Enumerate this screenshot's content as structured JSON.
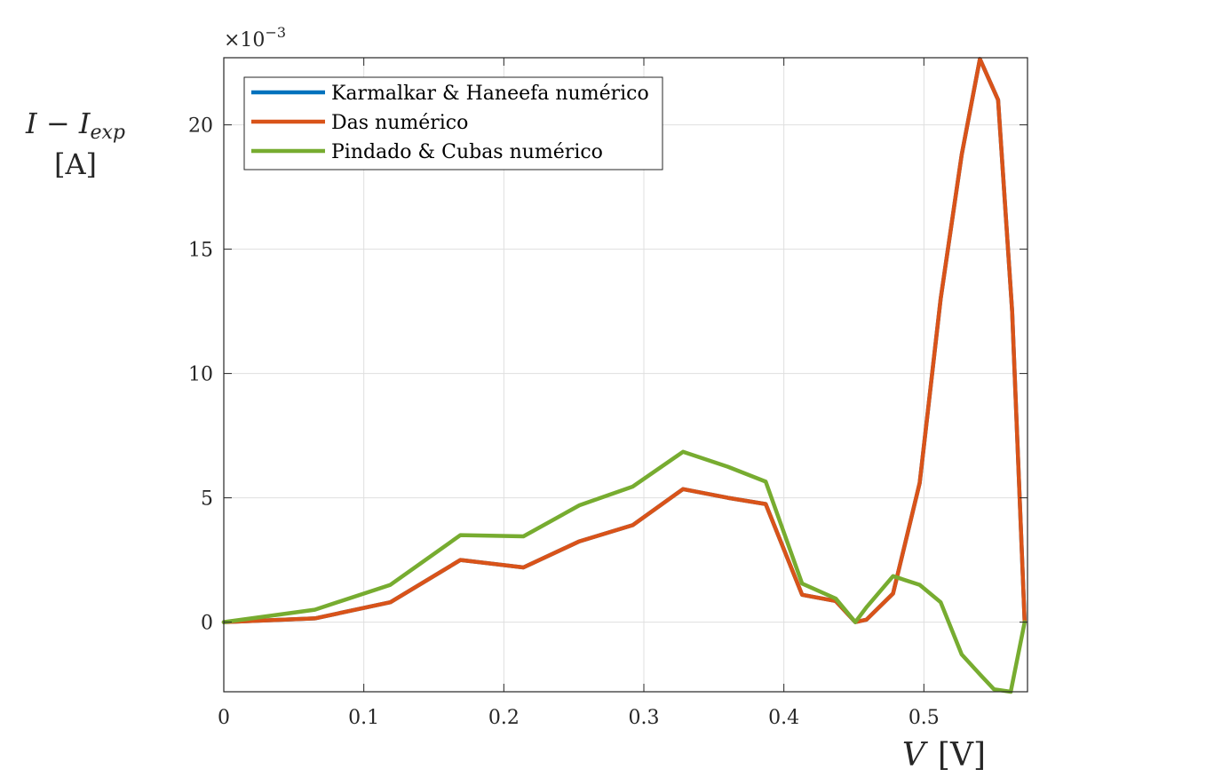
{
  "chart_data": {
    "type": "line",
    "exponent_label": "×10",
    "exponent_power": "−3",
    "ylabel_main": "I − I",
    "ylabel_sub": "exp",
    "ylabel_unit": "[A]",
    "xlabel_var": "V",
    "xlabel_unit": "[V]",
    "xlim": [
      0,
      0.574
    ],
    "ylim": [
      -2.8,
      22.7
    ],
    "xticks": [
      0,
      0.1,
      0.2,
      0.3,
      0.4,
      0.5
    ],
    "xtick_labels": [
      "0",
      "0.1",
      "0.2",
      "0.3",
      "0.4",
      "0.5"
    ],
    "yticks": [
      0,
      5,
      10,
      15,
      20
    ],
    "ytick_labels": [
      "0",
      "5",
      "10",
      "15",
      "20"
    ],
    "grid": true,
    "legend_position": "top-left",
    "series": [
      {
        "name": "Karmalkar & Haneefa numérico",
        "color": "#0072BD",
        "points": [
          [
            0,
            0
          ],
          [
            0.065,
            0.15
          ],
          [
            0.119,
            0.8
          ],
          [
            0.169,
            2.5
          ],
          [
            0.214,
            2.2
          ],
          [
            0.254,
            3.25
          ],
          [
            0.292,
            3.9
          ],
          [
            0.328,
            5.35
          ],
          [
            0.36,
            5.0
          ],
          [
            0.387,
            4.75
          ],
          [
            0.413,
            1.1
          ],
          [
            0.437,
            0.85
          ],
          [
            0.451,
            0
          ],
          [
            0.459,
            0.1
          ],
          [
            0.478,
            1.15
          ],
          [
            0.497,
            5.6
          ],
          [
            0.512,
            13.0
          ],
          [
            0.527,
            18.8
          ],
          [
            0.54,
            22.65
          ],
          [
            0.553,
            21.0
          ],
          [
            0.563,
            12.5
          ],
          [
            0.572,
            0
          ]
        ]
      },
      {
        "name": "Das numérico",
        "color": "#D95319",
        "points": [
          [
            0,
            0
          ],
          [
            0.065,
            0.15
          ],
          [
            0.119,
            0.8
          ],
          [
            0.169,
            2.5
          ],
          [
            0.214,
            2.2
          ],
          [
            0.254,
            3.25
          ],
          [
            0.292,
            3.9
          ],
          [
            0.328,
            5.35
          ],
          [
            0.36,
            5.0
          ],
          [
            0.387,
            4.75
          ],
          [
            0.413,
            1.1
          ],
          [
            0.437,
            0.85
          ],
          [
            0.451,
            0
          ],
          [
            0.459,
            0.1
          ],
          [
            0.478,
            1.15
          ],
          [
            0.497,
            5.6
          ],
          [
            0.512,
            13.0
          ],
          [
            0.527,
            18.8
          ],
          [
            0.54,
            22.65
          ],
          [
            0.553,
            21.0
          ],
          [
            0.563,
            12.5
          ],
          [
            0.572,
            0
          ]
        ]
      },
      {
        "name": "Pindado & Cubas numérico",
        "color": "#77AC30",
        "points": [
          [
            0,
            0
          ],
          [
            0.065,
            0.5
          ],
          [
            0.119,
            1.5
          ],
          [
            0.169,
            3.5
          ],
          [
            0.214,
            3.45
          ],
          [
            0.254,
            4.7
          ],
          [
            0.292,
            5.45
          ],
          [
            0.328,
            6.85
          ],
          [
            0.36,
            6.25
          ],
          [
            0.387,
            5.65
          ],
          [
            0.413,
            1.55
          ],
          [
            0.437,
            0.95
          ],
          [
            0.451,
            0
          ],
          [
            0.459,
            0.6
          ],
          [
            0.478,
            1.85
          ],
          [
            0.497,
            1.5
          ],
          [
            0.512,
            0.8
          ],
          [
            0.527,
            -1.3
          ],
          [
            0.54,
            -2.1
          ],
          [
            0.55,
            -2.7
          ],
          [
            0.562,
            -2.8
          ],
          [
            0.572,
            0
          ]
        ]
      }
    ]
  }
}
